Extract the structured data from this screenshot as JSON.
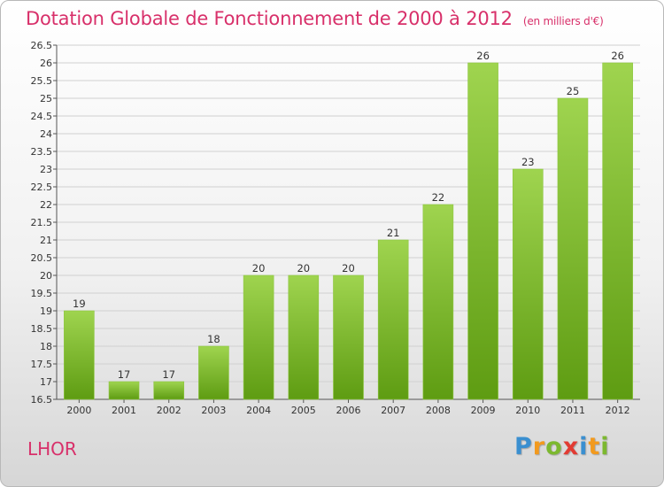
{
  "title": "Dotation Globale de Fonctionnement de 2000 à 2012",
  "subtitle": "(en milliers d'€)",
  "commune": "LHOR",
  "logo": {
    "letters": [
      "P",
      "r",
      "o",
      "x",
      "i",
      "t",
      "i"
    ],
    "colors": [
      "#3a8fd0",
      "#f29a1e",
      "#7cb82f",
      "#e23b33",
      "#3a8fd0",
      "#f29a1e",
      "#7cb82f"
    ]
  },
  "colors": {
    "title": "#d8306a",
    "bar_top": "#9fd44f",
    "bar_bottom": "#5e9c12",
    "grid": "#d0d0d0"
  },
  "chart_data": {
    "type": "bar",
    "title": "Dotation Globale de Fonctionnement de 2000 à 2012",
    "subtitle": "(en milliers d'€)",
    "categories": [
      "2000",
      "2001",
      "2002",
      "2003",
      "2004",
      "2005",
      "2006",
      "2007",
      "2008",
      "2009",
      "2010",
      "2011",
      "2012"
    ],
    "values": [
      19,
      17,
      17,
      18,
      20,
      20,
      20,
      21,
      22,
      26,
      23,
      25,
      26
    ],
    "ylim": [
      16.5,
      26.5
    ],
    "yticks": [
      "16.5",
      "17",
      "17.5",
      "18",
      "18.5",
      "19",
      "19.5",
      "20",
      "20.5",
      "21",
      "21.5",
      "22",
      "22.5",
      "23",
      "23.5",
      "24",
      "24.5",
      "25",
      "25.5",
      "26",
      "26.5"
    ],
    "grid": true,
    "legend": "none"
  }
}
